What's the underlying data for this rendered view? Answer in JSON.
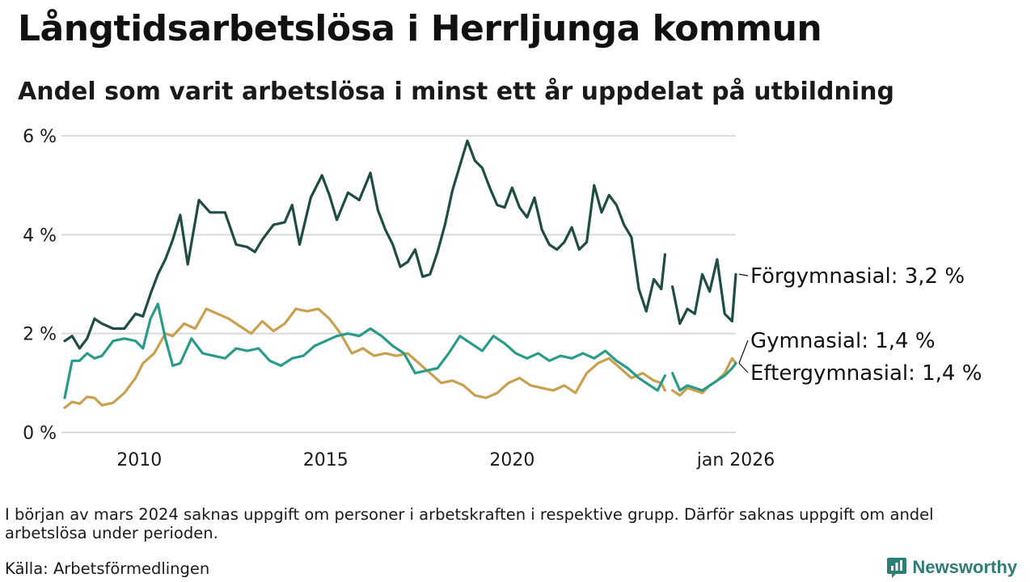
{
  "header": {
    "title": "Långtidsarbetslösa i Herrljunga kommun",
    "subtitle": "Andel som varit arbetslösa i minst ett år uppdelat på utbildning"
  },
  "footer": {
    "note": "I början av mars 2024 saknas uppgift om personer i arbetskraften i respektive grupp. Därför saknas uppgift om andel arbetslösa under perioden.",
    "source": "Källa: Arbetsförmedlingen",
    "brand": "Newsworthy"
  },
  "colors": {
    "forgymnasial": "#1f4d45",
    "gymnasial": "#c9a04f",
    "eftergymnasial": "#2a9b8a",
    "grid": "#d9d9d9",
    "brand": "#2f7d77"
  },
  "chart_data": {
    "type": "line",
    "title": "Långtidsarbetslösa i Herrljunga kommun",
    "xlabel": "",
    "ylabel": "",
    "ylim": [
      0,
      6
    ],
    "xlim": [
      2008.0,
      2026.0
    ],
    "yticks": [
      {
        "value": 0,
        "label": "0 %"
      },
      {
        "value": 2,
        "label": "2 %"
      },
      {
        "value": 4,
        "label": "4 %"
      },
      {
        "value": 6,
        "label": "6 %"
      }
    ],
    "xticks": [
      {
        "value": 2010.0,
        "label": "2010"
      },
      {
        "value": 2015.0,
        "label": "2015"
      },
      {
        "value": 2020.0,
        "label": "2020"
      },
      {
        "value": 2026.0,
        "label": "jan 2026"
      }
    ],
    "gap": [
      2024.1,
      2024.3
    ],
    "series": [
      {
        "name": "Förgymnasial",
        "color_key": "forgymnasial",
        "label": "Förgymnasial: 3,2 %",
        "last": 3.2,
        "points": [
          [
            2008.0,
            1.85
          ],
          [
            2008.2,
            1.95
          ],
          [
            2008.4,
            1.7
          ],
          [
            2008.6,
            1.9
          ],
          [
            2008.8,
            2.3
          ],
          [
            2009.0,
            2.2
          ],
          [
            2009.3,
            2.1
          ],
          [
            2009.6,
            2.1
          ],
          [
            2009.9,
            2.4
          ],
          [
            2010.1,
            2.35
          ],
          [
            2010.3,
            2.8
          ],
          [
            2010.5,
            3.2
          ],
          [
            2010.7,
            3.5
          ],
          [
            2010.9,
            3.9
          ],
          [
            2011.1,
            4.4
          ],
          [
            2011.3,
            3.4
          ],
          [
            2011.6,
            4.7
          ],
          [
            2011.9,
            4.45
          ],
          [
            2012.1,
            4.45
          ],
          [
            2012.3,
            4.45
          ],
          [
            2012.6,
            3.8
          ],
          [
            2012.9,
            3.75
          ],
          [
            2013.1,
            3.65
          ],
          [
            2013.3,
            3.9
          ],
          [
            2013.6,
            4.2
          ],
          [
            2013.9,
            4.25
          ],
          [
            2014.1,
            4.6
          ],
          [
            2014.3,
            3.8
          ],
          [
            2014.6,
            4.75
          ],
          [
            2014.9,
            5.2
          ],
          [
            2015.1,
            4.8
          ],
          [
            2015.3,
            4.3
          ],
          [
            2015.6,
            4.85
          ],
          [
            2015.9,
            4.7
          ],
          [
            2016.2,
            5.25
          ],
          [
            2016.4,
            4.5
          ],
          [
            2016.6,
            4.1
          ],
          [
            2016.8,
            3.8
          ],
          [
            2017.0,
            3.35
          ],
          [
            2017.2,
            3.45
          ],
          [
            2017.4,
            3.7
          ],
          [
            2017.6,
            3.15
          ],
          [
            2017.8,
            3.2
          ],
          [
            2018.0,
            3.65
          ],
          [
            2018.2,
            4.2
          ],
          [
            2018.4,
            4.9
          ],
          [
            2018.6,
            5.4
          ],
          [
            2018.8,
            5.9
          ],
          [
            2019.0,
            5.5
          ],
          [
            2019.2,
            5.35
          ],
          [
            2019.4,
            4.95
          ],
          [
            2019.6,
            4.6
          ],
          [
            2019.8,
            4.55
          ],
          [
            2020.0,
            4.95
          ],
          [
            2020.2,
            4.55
          ],
          [
            2020.4,
            4.35
          ],
          [
            2020.6,
            4.75
          ],
          [
            2020.8,
            4.1
          ],
          [
            2021.0,
            3.8
          ],
          [
            2021.2,
            3.7
          ],
          [
            2021.4,
            3.85
          ],
          [
            2021.6,
            4.15
          ],
          [
            2021.8,
            3.7
          ],
          [
            2022.0,
            3.85
          ],
          [
            2022.2,
            5.0
          ],
          [
            2022.4,
            4.45
          ],
          [
            2022.6,
            4.8
          ],
          [
            2022.8,
            4.6
          ],
          [
            2023.0,
            4.2
          ],
          [
            2023.2,
            3.95
          ],
          [
            2023.4,
            2.9
          ],
          [
            2023.6,
            2.45
          ],
          [
            2023.8,
            3.1
          ],
          [
            2024.0,
            2.9
          ],
          [
            2024.1,
            3.6
          ],
          null,
          [
            2024.3,
            2.95
          ],
          [
            2024.5,
            2.2
          ],
          [
            2024.7,
            2.5
          ],
          [
            2024.9,
            2.4
          ],
          [
            2025.1,
            3.2
          ],
          [
            2025.3,
            2.85
          ],
          [
            2025.5,
            3.5
          ],
          [
            2025.7,
            2.4
          ],
          [
            2025.9,
            2.25
          ],
          [
            2026.0,
            3.2
          ]
        ]
      },
      {
        "name": "Gymnasial",
        "color_key": "gymnasial",
        "label": "Gymnasial: 1,4 %",
        "last": 1.4,
        "points": [
          [
            2008.0,
            0.5
          ],
          [
            2008.2,
            0.62
          ],
          [
            2008.4,
            0.58
          ],
          [
            2008.6,
            0.72
          ],
          [
            2008.8,
            0.7
          ],
          [
            2009.0,
            0.55
          ],
          [
            2009.3,
            0.6
          ],
          [
            2009.6,
            0.8
          ],
          [
            2009.9,
            1.1
          ],
          [
            2010.1,
            1.4
          ],
          [
            2010.4,
            1.6
          ],
          [
            2010.7,
            2.0
          ],
          [
            2010.9,
            1.95
          ],
          [
            2011.2,
            2.2
          ],
          [
            2011.5,
            2.1
          ],
          [
            2011.8,
            2.5
          ],
          [
            2012.1,
            2.4
          ],
          [
            2012.4,
            2.3
          ],
          [
            2012.7,
            2.15
          ],
          [
            2013.0,
            2.0
          ],
          [
            2013.3,
            2.25
          ],
          [
            2013.6,
            2.05
          ],
          [
            2013.9,
            2.2
          ],
          [
            2014.2,
            2.5
          ],
          [
            2014.5,
            2.45
          ],
          [
            2014.8,
            2.5
          ],
          [
            2015.1,
            2.3
          ],
          [
            2015.4,
            2.0
          ],
          [
            2015.7,
            1.6
          ],
          [
            2016.0,
            1.7
          ],
          [
            2016.3,
            1.55
          ],
          [
            2016.6,
            1.6
          ],
          [
            2016.9,
            1.55
          ],
          [
            2017.2,
            1.6
          ],
          [
            2017.5,
            1.4
          ],
          [
            2017.8,
            1.2
          ],
          [
            2018.1,
            1.0
          ],
          [
            2018.4,
            1.05
          ],
          [
            2018.7,
            0.95
          ],
          [
            2019.0,
            0.75
          ],
          [
            2019.3,
            0.7
          ],
          [
            2019.6,
            0.8
          ],
          [
            2019.9,
            1.0
          ],
          [
            2020.2,
            1.1
          ],
          [
            2020.5,
            0.95
          ],
          [
            2020.8,
            0.9
          ],
          [
            2021.1,
            0.85
          ],
          [
            2021.4,
            0.95
          ],
          [
            2021.7,
            0.8
          ],
          [
            2022.0,
            1.2
          ],
          [
            2022.3,
            1.4
          ],
          [
            2022.6,
            1.5
          ],
          [
            2022.9,
            1.3
          ],
          [
            2023.2,
            1.1
          ],
          [
            2023.5,
            1.2
          ],
          [
            2023.8,
            1.05
          ],
          [
            2024.0,
            1.0
          ],
          [
            2024.1,
            0.85
          ],
          null,
          [
            2024.3,
            0.85
          ],
          [
            2024.5,
            0.75
          ],
          [
            2024.7,
            0.9
          ],
          [
            2024.9,
            0.85
          ],
          [
            2025.1,
            0.8
          ],
          [
            2025.3,
            0.95
          ],
          [
            2025.5,
            1.05
          ],
          [
            2025.7,
            1.2
          ],
          [
            2025.9,
            1.5
          ],
          [
            2026.0,
            1.4
          ]
        ]
      },
      {
        "name": "Eftergymnasial",
        "color_key": "eftergymnasial",
        "label": "Eftergymnasial: 1,4 %",
        "last": 1.4,
        "points": [
          [
            2008.0,
            0.7
          ],
          [
            2008.2,
            1.45
          ],
          [
            2008.4,
            1.45
          ],
          [
            2008.6,
            1.6
          ],
          [
            2008.8,
            1.5
          ],
          [
            2009.0,
            1.55
          ],
          [
            2009.3,
            1.85
          ],
          [
            2009.6,
            1.9
          ],
          [
            2009.9,
            1.85
          ],
          [
            2010.1,
            1.7
          ],
          [
            2010.3,
            2.3
          ],
          [
            2010.5,
            2.6
          ],
          [
            2010.7,
            1.9
          ],
          [
            2010.9,
            1.35
          ],
          [
            2011.1,
            1.4
          ],
          [
            2011.4,
            1.9
          ],
          [
            2011.7,
            1.6
          ],
          [
            2012.0,
            1.55
          ],
          [
            2012.3,
            1.5
          ],
          [
            2012.6,
            1.7
          ],
          [
            2012.9,
            1.65
          ],
          [
            2013.2,
            1.7
          ],
          [
            2013.5,
            1.45
          ],
          [
            2013.8,
            1.35
          ],
          [
            2014.1,
            1.5
          ],
          [
            2014.4,
            1.55
          ],
          [
            2014.7,
            1.75
          ],
          [
            2015.0,
            1.85
          ],
          [
            2015.3,
            1.95
          ],
          [
            2015.6,
            2.0
          ],
          [
            2015.9,
            1.95
          ],
          [
            2016.2,
            2.1
          ],
          [
            2016.5,
            1.95
          ],
          [
            2016.8,
            1.75
          ],
          [
            2017.1,
            1.6
          ],
          [
            2017.4,
            1.2
          ],
          [
            2017.7,
            1.25
          ],
          [
            2018.0,
            1.3
          ],
          [
            2018.3,
            1.6
          ],
          [
            2018.6,
            1.95
          ],
          [
            2018.9,
            1.8
          ],
          [
            2019.2,
            1.65
          ],
          [
            2019.5,
            1.95
          ],
          [
            2019.8,
            1.8
          ],
          [
            2020.1,
            1.6
          ],
          [
            2020.4,
            1.5
          ],
          [
            2020.7,
            1.6
          ],
          [
            2021.0,
            1.45
          ],
          [
            2021.3,
            1.55
          ],
          [
            2021.6,
            1.5
          ],
          [
            2021.9,
            1.6
          ],
          [
            2022.2,
            1.5
          ],
          [
            2022.5,
            1.65
          ],
          [
            2022.8,
            1.45
          ],
          [
            2023.1,
            1.3
          ],
          [
            2023.4,
            1.1
          ],
          [
            2023.7,
            0.95
          ],
          [
            2023.9,
            0.85
          ],
          [
            2024.1,
            1.15
          ],
          null,
          [
            2024.3,
            1.2
          ],
          [
            2024.5,
            0.85
          ],
          [
            2024.7,
            0.95
          ],
          [
            2024.9,
            0.9
          ],
          [
            2025.1,
            0.85
          ],
          [
            2025.3,
            0.95
          ],
          [
            2025.5,
            1.05
          ],
          [
            2025.7,
            1.15
          ],
          [
            2025.9,
            1.3
          ],
          [
            2026.0,
            1.4
          ]
        ]
      }
    ]
  }
}
